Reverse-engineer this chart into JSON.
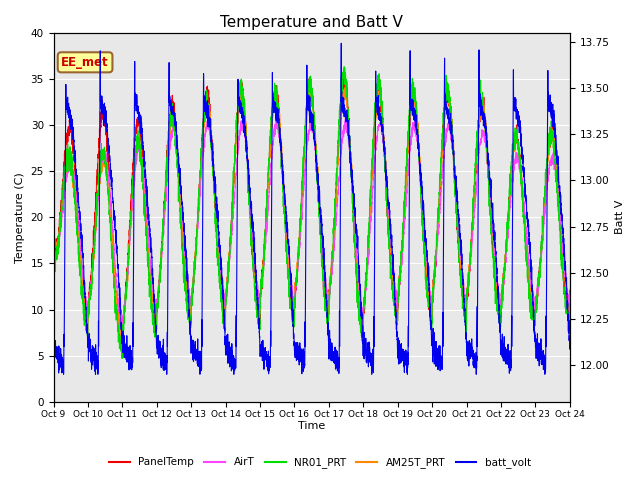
{
  "title": "Temperature and Batt V",
  "xlabel": "Time",
  "ylabel_left": "Temperature (C)",
  "ylabel_right": "Batt V",
  "ylim_left": [
    0,
    40
  ],
  "ylim_right": [
    11.8,
    13.8
  ],
  "x_tick_labels": [
    "Oct 9",
    "Oct 10",
    "Oct 11",
    "Oct 12",
    "Oct 13",
    "Oct 14",
    "Oct 15",
    "Oct 16",
    "Oct 17",
    "Oct 18",
    "Oct 19",
    "Oct 20",
    "Oct 21",
    "Oct 22",
    "Oct 23",
    "Oct 24"
  ],
  "annotation_text": "EE_met",
  "annotation_box_color": "#FFFF99",
  "annotation_text_color": "#CC0000",
  "annotation_edge_color": "#996633",
  "plot_bg_color": "#E8E8E8",
  "series_colors": {
    "PanelTemp": "#EE0000",
    "AirT": "#FF44FF",
    "NR01_PRT": "#00DD00",
    "AM25T_PRT": "#FF8800",
    "batt_volt": "#0000EE"
  },
  "legend_labels": [
    "PanelTemp",
    "AirT",
    "NR01_PRT",
    "AM25T_PRT",
    "batt_volt"
  ],
  "n_points": 4320,
  "days": 15,
  "title_fontsize": 11,
  "samples_per_day": 288
}
